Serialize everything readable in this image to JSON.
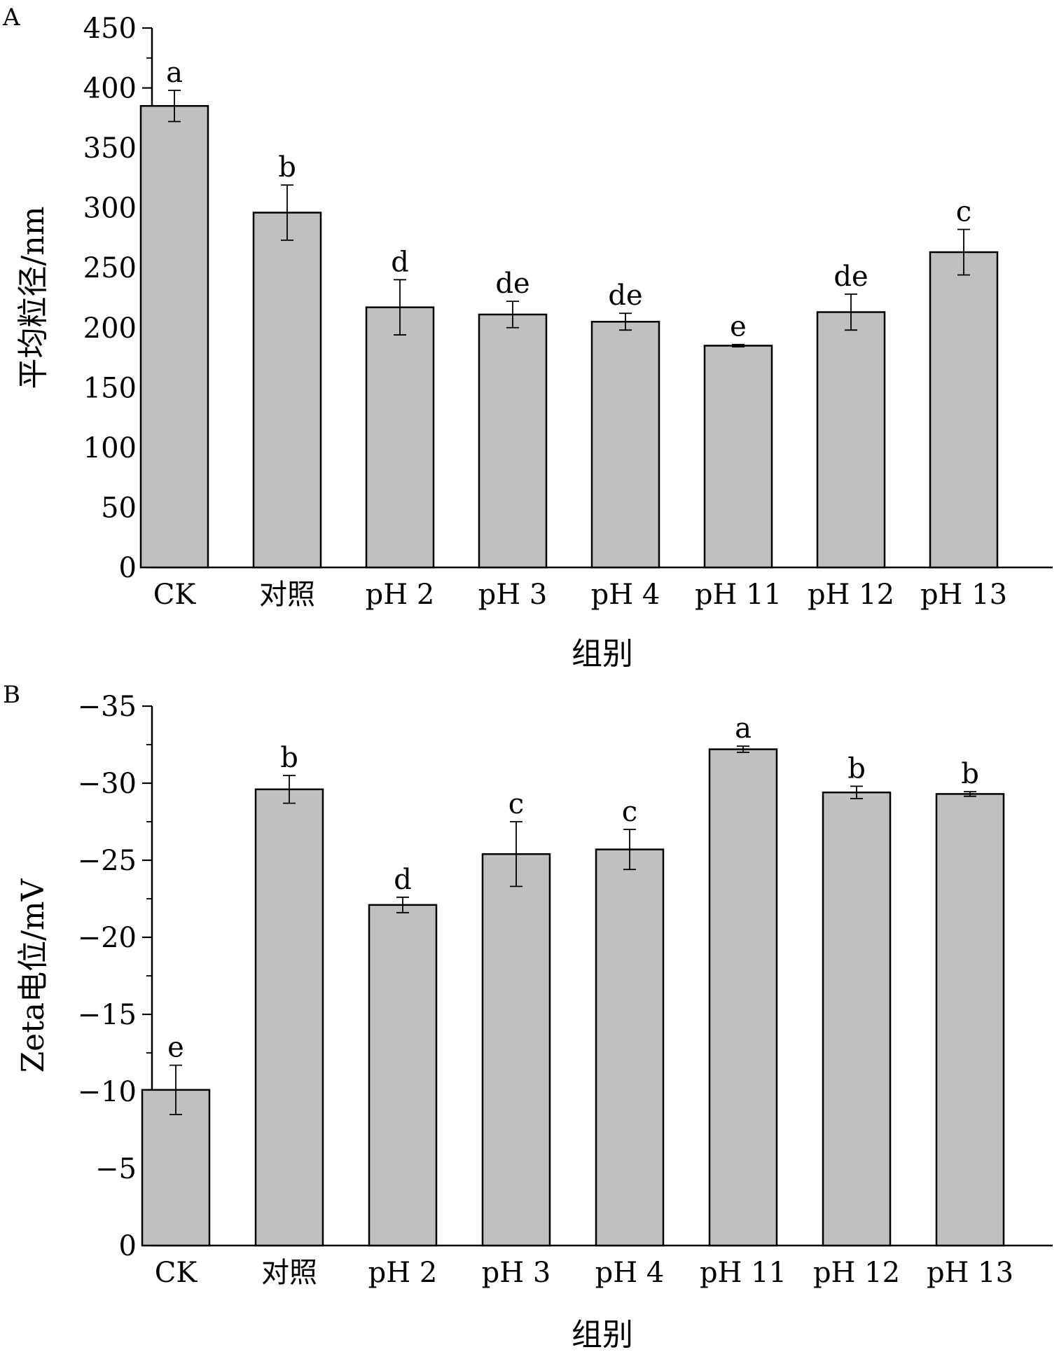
{
  "chart_data": [
    {
      "panel": "A",
      "type": "bar",
      "categories": [
        "CK",
        "对照",
        "pH 2",
        "pH 3",
        "pH 4",
        "pH 11",
        "pH 12",
        "pH 13"
      ],
      "values": [
        385,
        296,
        217,
        211,
        205,
        185,
        213,
        263
      ],
      "errors": [
        13,
        23,
        23,
        11,
        7,
        1,
        15,
        19
      ],
      "significance": [
        "a",
        "b",
        "d",
        "de",
        "de",
        "e",
        "de",
        "c"
      ],
      "xlabel": "组别",
      "ylabel": "平均粒径/nm",
      "ylim": [
        0,
        450
      ],
      "yticks": [
        0,
        50,
        100,
        150,
        200,
        250,
        300,
        350,
        400,
        450
      ],
      "tick_labels": [
        "0",
        "50",
        "100",
        "150",
        "200",
        "250",
        "300",
        "350",
        "400",
        "450"
      ],
      "bar_color": "#c0c0c0",
      "grid": false
    },
    {
      "panel": "B",
      "type": "bar",
      "categories": [
        "CK",
        "对照",
        "pH 2",
        "pH 3",
        "pH 4",
        "pH 11",
        "pH 12",
        "pH 13"
      ],
      "values": [
        -10.1,
        -29.6,
        -22.1,
        -25.4,
        -25.7,
        -32.2,
        -29.4,
        -29.3
      ],
      "errors": [
        1.6,
        0.9,
        0.5,
        2.1,
        1.3,
        0.2,
        0.4,
        0.15
      ],
      "significance": [
        "e",
        "b",
        "d",
        "c",
        "c",
        "a",
        "b",
        "b"
      ],
      "xlabel": "组别",
      "ylabel": "Zeta电位/mV",
      "ylim": [
        0,
        -35
      ],
      "yticks": [
        0,
        -5,
        -10,
        -15,
        -20,
        -25,
        -30,
        -35
      ],
      "tick_labels": [
        "0",
        "−5",
        "−10",
        "−15",
        "−20",
        "−25",
        "−30",
        "−35"
      ],
      "bar_color": "#c0c0c0",
      "grid": false
    }
  ]
}
